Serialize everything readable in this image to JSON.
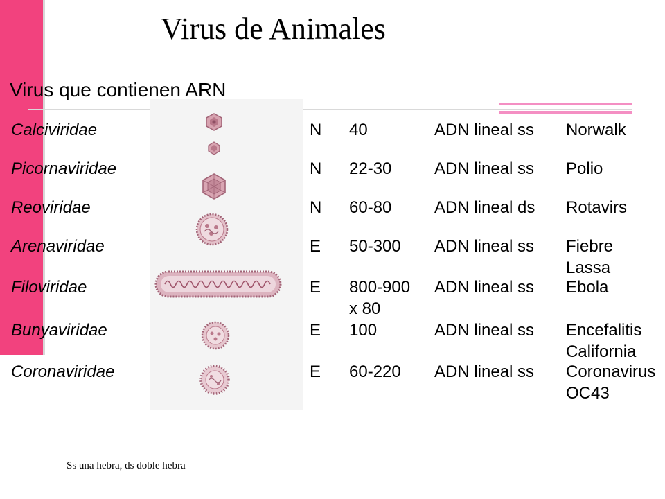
{
  "title": "Virus de Animales",
  "subtitle": "Virus que contienen ARN",
  "rows": [
    {
      "family": "Calciviridae",
      "envelope": "N",
      "size": "40",
      "genome": "ADN lineal ss",
      "example": "Norwalk"
    },
    {
      "family": "Picornaviridae",
      "envelope": "N",
      "size": "22-30",
      "genome": "ADN lineal ss",
      "example": "Polio"
    },
    {
      "family": "Reoviridae",
      "envelope": "N",
      "size": "60-80",
      "genome": "ADN lineal ds",
      "example": "Rotavirs"
    },
    {
      "family": "Arenaviridae",
      "envelope": "E",
      "size": "50-300",
      "genome": "ADN lineal ss",
      "example": "Fiebre\nLassa"
    },
    {
      "family": "Filoviridae",
      "envelope": "E",
      "size": "800-900\nx 80",
      "genome": "ADN lineal ss",
      "example": "Ebola"
    },
    {
      "family": "Bunyaviridae",
      "envelope": "E",
      "size": "100",
      "genome": "ADN lineal ss",
      "example": "Encefalitis\nCalifornia"
    },
    {
      "family": "Coronaviridae",
      "envelope": "E",
      "size": "60-220",
      "genome": "ADN lineal ss",
      "example": "Coronavirus\nOC43"
    }
  ],
  "footnote": "Ss una hebra, ds doble hebra",
  "colors": {
    "sidebar": "#f2427e",
    "accent": "#f48fc3",
    "virus": "#c98f9e"
  },
  "icons": [
    "calicivirus-icon",
    "picornavirus-icon",
    "reovirus-icon",
    "arenavirus-icon",
    "filovirus-icon",
    "bunyavirus-icon",
    "coronavirus-icon"
  ]
}
